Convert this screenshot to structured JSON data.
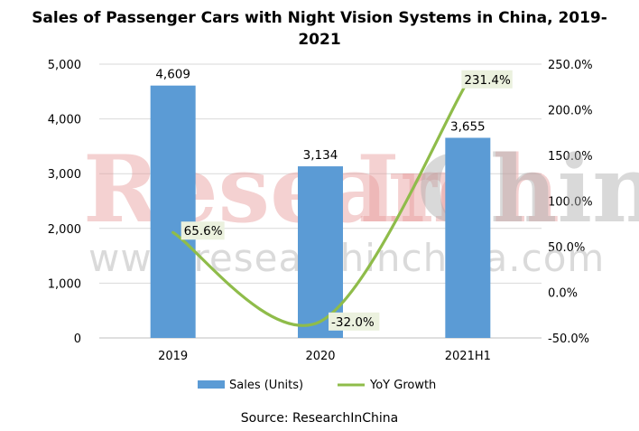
{
  "chart_data": {
    "type": "bar+line",
    "title": "Sales of Passenger Cars with Night Vision Systems in China, 2019-2021",
    "title_lines": [
      "Sales of Passenger Cars with Night Vision Systems in China, 2019-",
      "2021"
    ],
    "categories": [
      "2019",
      "2020",
      "2021H1"
    ],
    "series": [
      {
        "name": "Sales (Units)",
        "type": "bar",
        "axis": "left",
        "color": "#5b9bd5",
        "values": [
          4609,
          3134,
          3655
        ],
        "labels": [
          "4,609",
          "3,134",
          "3,655"
        ]
      },
      {
        "name": "YoY Growth",
        "type": "line",
        "axis": "right",
        "color": "#8fbc4a",
        "values": [
          65.6,
          -32.0,
          231.4
        ],
        "labels": [
          "65.6%",
          "-32.0%",
          "231.4%"
        ]
      }
    ],
    "y_left": {
      "min": 0,
      "max": 5000,
      "ticks": [
        0,
        1000,
        2000,
        3000,
        4000,
        5000
      ],
      "tick_labels": [
        "0",
        "1,000",
        "2,000",
        "3,000",
        "4,000",
        "5,000"
      ]
    },
    "y_right": {
      "min": -50,
      "max": 250,
      "ticks": [
        -50,
        0,
        50,
        100,
        150,
        200,
        250
      ],
      "tick_labels": [
        "-50.0%",
        "0.0%",
        "50.0%",
        "100.0%",
        "150.0%",
        "200.0%",
        "250.0%"
      ]
    },
    "grid": true,
    "legend_position": "bottom",
    "source": "Source: ResearchInChina",
    "watermark": {
      "logo": "ResearchInChina",
      "url": "www.researchinchina.com"
    }
  }
}
